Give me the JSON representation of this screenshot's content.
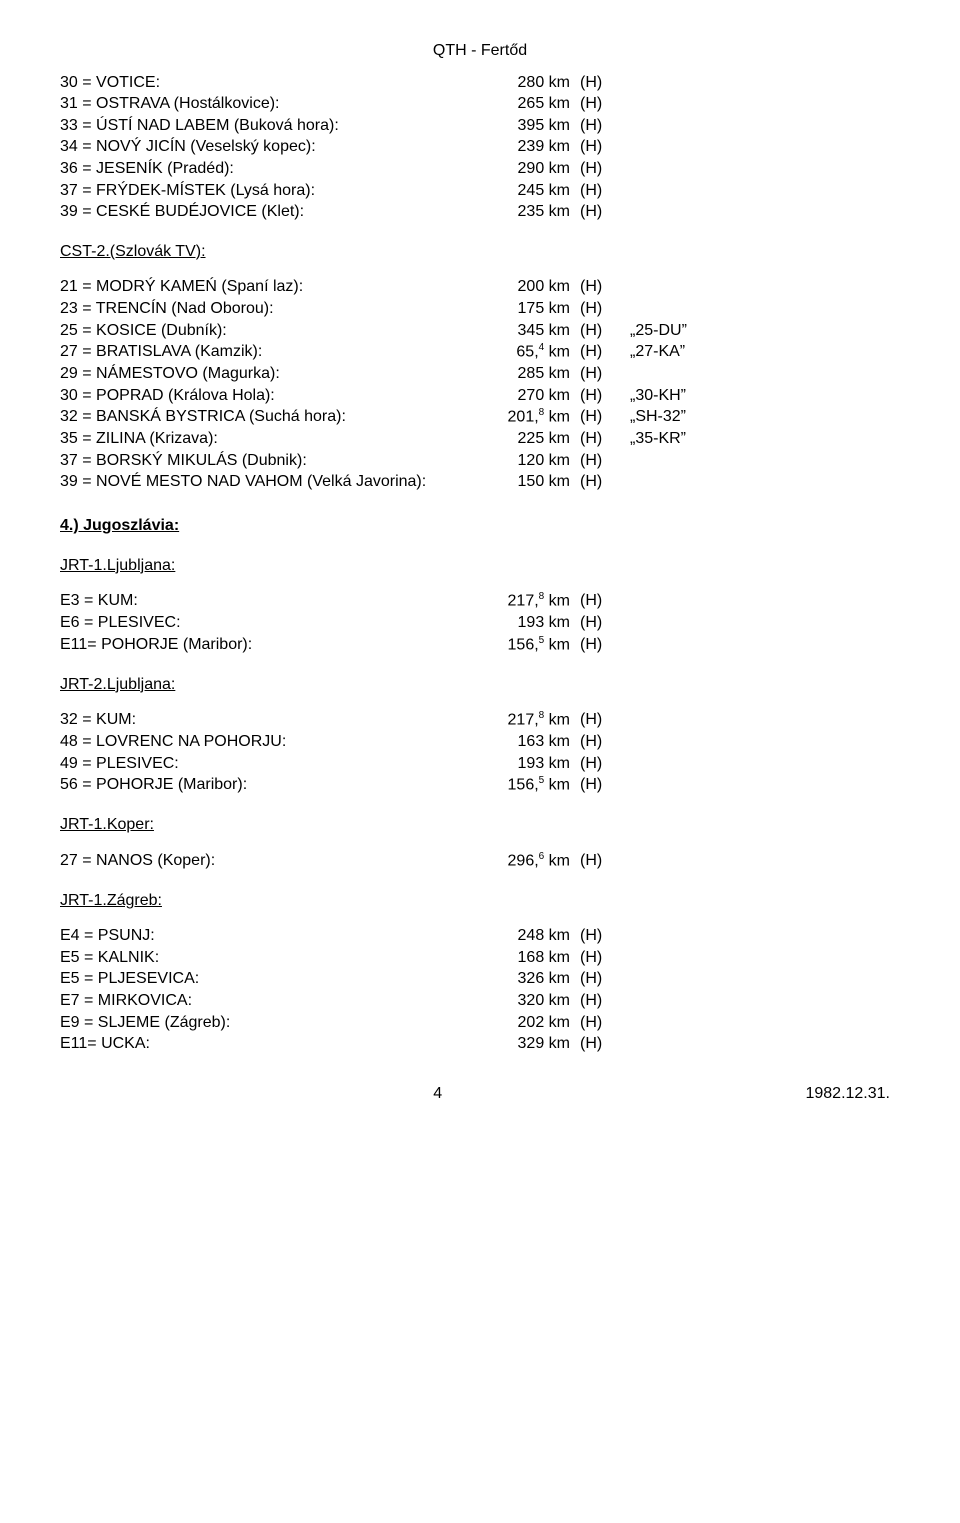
{
  "header": "QTH - Fertőd",
  "blocks": [
    {
      "rows": [
        {
          "label": "30 = VOTICE:",
          "dist": "280 km",
          "flag": "(H)",
          "tag": ""
        },
        {
          "label": "31 = OSTRAVA (Hostálkovice):",
          "dist": "265 km",
          "flag": "(H)",
          "tag": ""
        },
        {
          "label": "33 = ÚSTÍ NAD LABEM (Buková hora):",
          "dist": "395 km",
          "flag": "(H)",
          "tag": ""
        },
        {
          "label": "34 = NOVÝ JICÍN (Veselský kopec):",
          "dist": "239 km",
          "flag": "(H)",
          "tag": ""
        },
        {
          "label": "36 = JESENÍK (Pradéd):",
          "dist": "290 km",
          "flag": "(H)",
          "tag": ""
        },
        {
          "label": "37 = FRÝDEK-MÍSTEK (Lysá hora):",
          "dist": "245 km",
          "flag": "(H)",
          "tag": ""
        },
        {
          "label": "39 = CESKÉ BUDÉJOVICE (Klet):",
          "dist": "235 km",
          "flag": "(H)",
          "tag": ""
        }
      ]
    }
  ],
  "cst2_title": "CST-2.(Szlovák TV):",
  "cst2_rows": [
    {
      "label": "21 = MODRÝ KAMEŃ (Spaní laz):",
      "dist": "200 km",
      "flag": "(H)",
      "tag": ""
    },
    {
      "label": "23 = TRENCÍN (Nad Oborou):",
      "dist": "175 km",
      "flag": "(H)",
      "tag": ""
    },
    {
      "label": "25 = KOSICE (Dubník):",
      "dist": "345 km",
      "flag": "(H)",
      "tag": "„25-DU”"
    },
    {
      "label": "27 = BRATISLAVA (Kamzik):",
      "dist": "65,⁴ km",
      "flag": "(H)",
      "tag": "„27-KA”"
    },
    {
      "label": "29 = NÁMESTOVO (Magurka):",
      "dist": "285 km",
      "flag": "(H)",
      "tag": ""
    },
    {
      "label": "30 = POPRAD (Králova Hola):",
      "dist": "270 km",
      "flag": "(H)",
      "tag": "„30-KH”"
    },
    {
      "label": "32 = BANSKÁ BYSTRICA (Suchá hora):",
      "dist": "201,⁸ km",
      "flag": "(H)",
      "tag": "„SH-32”"
    },
    {
      "label": "35 = ZILINA (Krizava):",
      "dist": "225 km",
      "flag": "(H)",
      "tag": "„35-KR”"
    },
    {
      "label": "37 = BORSKÝ MIKULÁS (Dubnik):",
      "dist": "120 km",
      "flag": "(H)",
      "tag": ""
    },
    {
      "label": "39 = NOVÉ MESTO NAD VAHOM (Velká Javorina):",
      "dist": "150 km",
      "flag": "(H)",
      "tag": ""
    }
  ],
  "yugo_title": "4.) Jugoszlávia:",
  "jrt1lj_title": "JRT-1.Ljubljana:",
  "jrt1lj_rows": [
    {
      "label": "E3 = KUM:",
      "dist": "217,⁸ km",
      "flag": "(H)",
      "tag": ""
    },
    {
      "label": "E6 = PLESIVEC:",
      "dist": "193 km",
      "flag": "(H)",
      "tag": ""
    },
    {
      "label": "E11= POHORJE (Maribor):",
      "dist": "156,⁵ km",
      "flag": "(H)",
      "tag": ""
    }
  ],
  "jrt2lj_title": "JRT-2.Ljubljana:",
  "jrt2lj_rows": [
    {
      "label": "32 = KUM:",
      "dist": "217,⁸ km",
      "flag": "(H)",
      "tag": ""
    },
    {
      "label": "48 = LOVRENC NA POHORJU:",
      "dist": "163 km",
      "flag": "(H)",
      "tag": ""
    },
    {
      "label": "49 = PLESIVEC:",
      "dist": "193 km",
      "flag": "(H)",
      "tag": ""
    },
    {
      "label": "56 = POHORJE (Maribor):",
      "dist": "156,⁵ km",
      "flag": "(H)",
      "tag": ""
    }
  ],
  "jrt1kp_title": "JRT-1.Koper:",
  "jrt1kp_rows": [
    {
      "label": "27 = NANOS (Koper):",
      "dist": "296,⁶ km",
      "flag": "(H)",
      "tag": ""
    }
  ],
  "jrt1zg_title": "JRT-1.Zágreb:",
  "jrt1zg_rows": [
    {
      "label": "E4 = PSUNJ:",
      "dist": "248 km",
      "flag": "(H)",
      "tag": ""
    },
    {
      "label": "E5 = KALNIK:",
      "dist": "168 km",
      "flag": "(H)",
      "tag": ""
    },
    {
      "label": "E5 = PLJESEVICA:",
      "dist": "326 km",
      "flag": "(H)",
      "tag": ""
    },
    {
      "label": "E7 = MIRKOVICA:",
      "dist": "320 km",
      "flag": "(H)",
      "tag": ""
    },
    {
      "label": "E9 = SLJEME (Zágreb):",
      "dist": "202 km",
      "flag": "(H)",
      "tag": ""
    },
    {
      "label": "E11= UCKA:",
      "dist": "329 km",
      "flag": "(H)",
      "tag": ""
    }
  ],
  "footer_page": "4",
  "footer_date": "1982.12.31."
}
